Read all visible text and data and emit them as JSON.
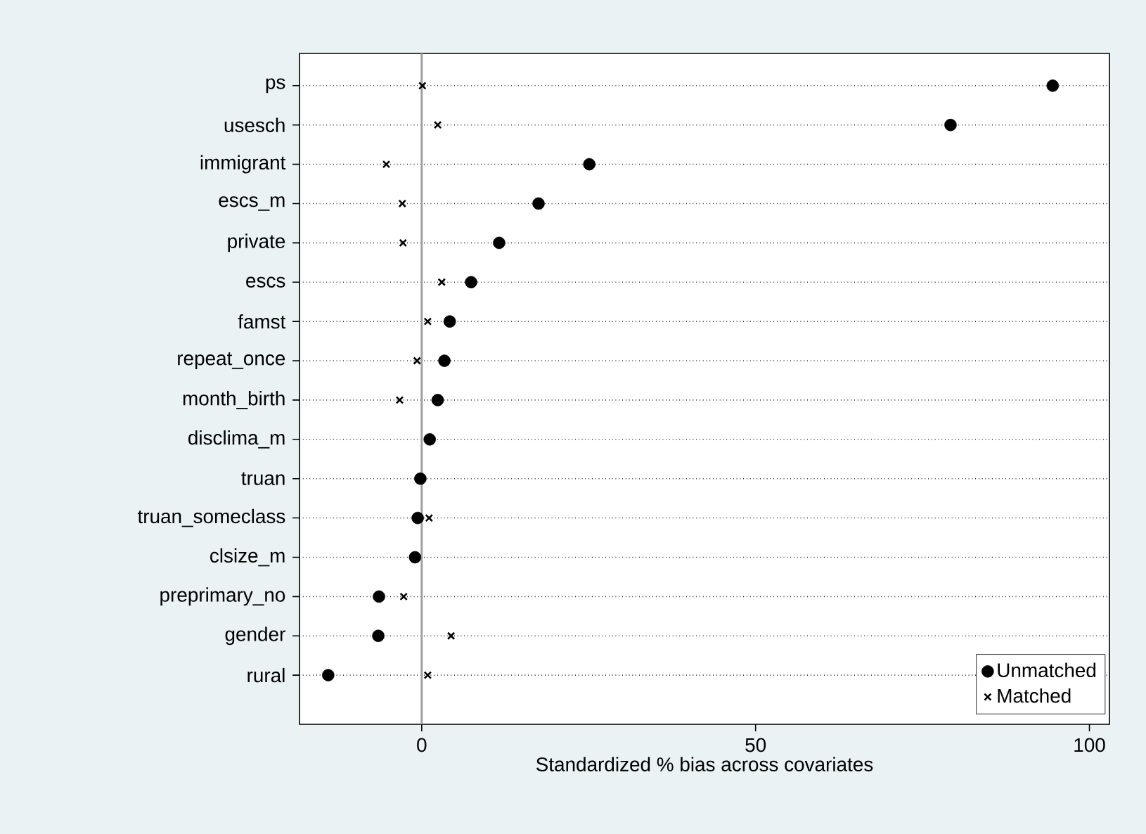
{
  "chart_data": {
    "type": "scatter",
    "orientation": "horizontal",
    "xlabel": "Standardized % bias across covariates",
    "categories": [
      "ps",
      "usesch",
      "immigrant",
      "escs_m",
      "private",
      "escs",
      "famst",
      "repeat_once",
      "month_birth",
      "disclima_m",
      "truan",
      "truan_someclass",
      "clsize_m",
      "preprimary_no",
      "gender",
      "rural"
    ],
    "series": [
      {
        "name": "Unmatched",
        "color": "#000000",
        "marker": "circle",
        "values": [
          94.5,
          79.2,
          25.1,
          17.5,
          11.6,
          7.4,
          4.2,
          3.4,
          2.4,
          1.2,
          -0.2,
          -0.6,
          -1.0,
          -6.4,
          -6.5,
          -14.0
        ]
      },
      {
        "name": "Matched",
        "color": "#000000",
        "marker": "cross",
        "values": [
          0.1,
          2.4,
          -5.3,
          -2.9,
          -2.8,
          3.0,
          0.9,
          -0.7,
          -3.3,
          null,
          null,
          1.1,
          null,
          -2.7,
          4.4,
          0.9
        ]
      }
    ],
    "xlim": [
      -18.3,
      103
    ],
    "xticks": [
      0,
      50,
      100
    ],
    "ref_lines": [
      {
        "axis": "x",
        "value": 0,
        "color": "#a0a0a0"
      }
    ],
    "grid": "y",
    "line_style": "dotted",
    "legend": "bottom right"
  }
}
